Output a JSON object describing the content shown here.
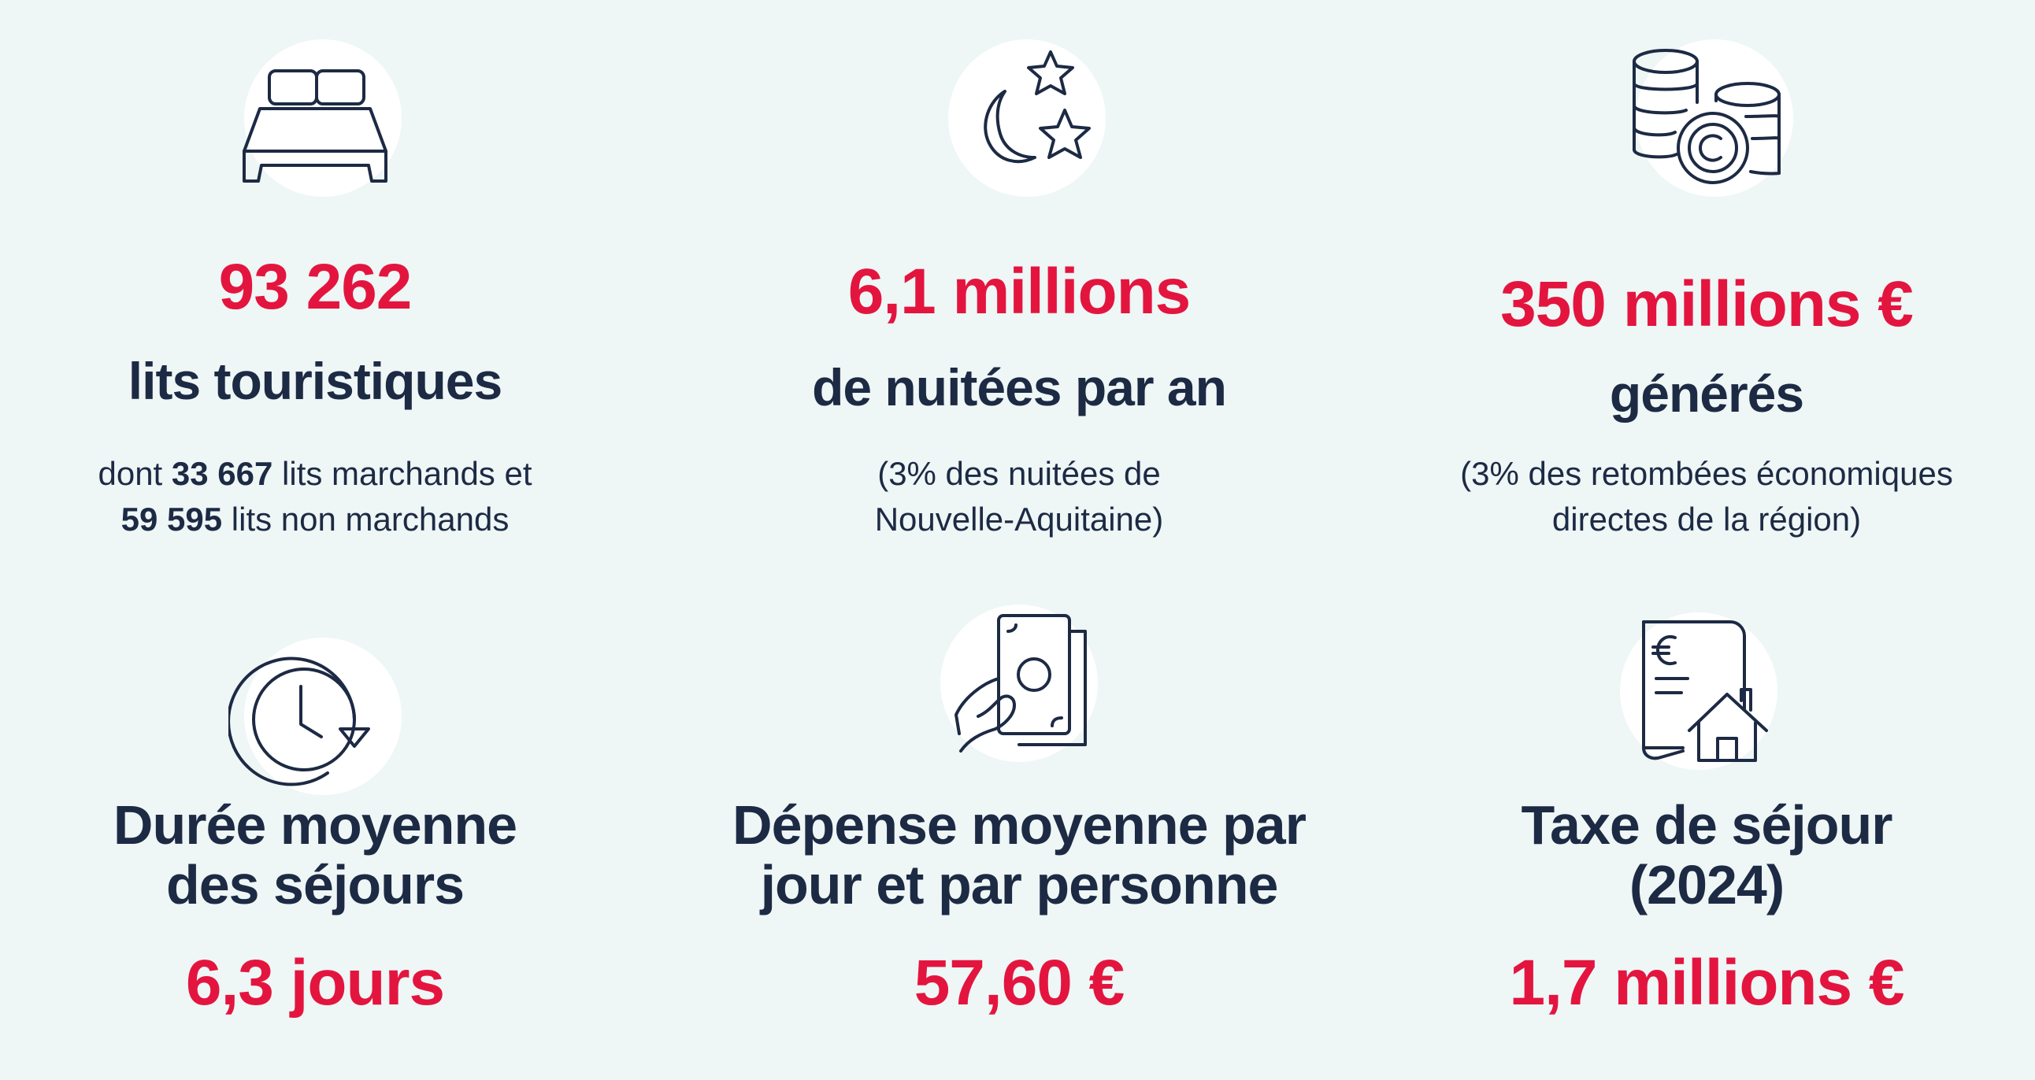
{
  "colors": {
    "accent": "#e3153f",
    "text": "#1d2a44",
    "background": "#eef6f6"
  },
  "stats": [
    {
      "icon": "bed-icon",
      "value": "93 262",
      "label": "lits touristiques",
      "note_line1_prefix": "dont ",
      "note_line1_bold": "33 667",
      "note_line1_suffix": " lits marchands et",
      "note_line2_bold": "59 595",
      "note_line2_suffix": " lits non marchands"
    },
    {
      "icon": "moon-stars-icon",
      "value": "6,1 millions",
      "label": "de nuitées par an",
      "note_line1": "(3% des nuitées de",
      "note_line2": "Nouvelle-Aquitaine)"
    },
    {
      "icon": "coins-icon",
      "value": "350 millions €",
      "label": "générés",
      "note_line1": "(3% des retombées économiques",
      "note_line2": "directes de la région)"
    },
    {
      "icon": "clock-arrow-icon",
      "label_line1": "Durée moyenne",
      "label_line2": "des séjours",
      "value": "6,3 jours"
    },
    {
      "icon": "hand-banknote-icon",
      "label_line1": "Dépense moyenne par",
      "label_line2": "jour et par personne",
      "value": "57,60 €"
    },
    {
      "icon": "euro-document-house-icon",
      "label_line1": "Taxe de séjour",
      "label_line2": "(2024)",
      "value": "1,7 millions €"
    }
  ]
}
